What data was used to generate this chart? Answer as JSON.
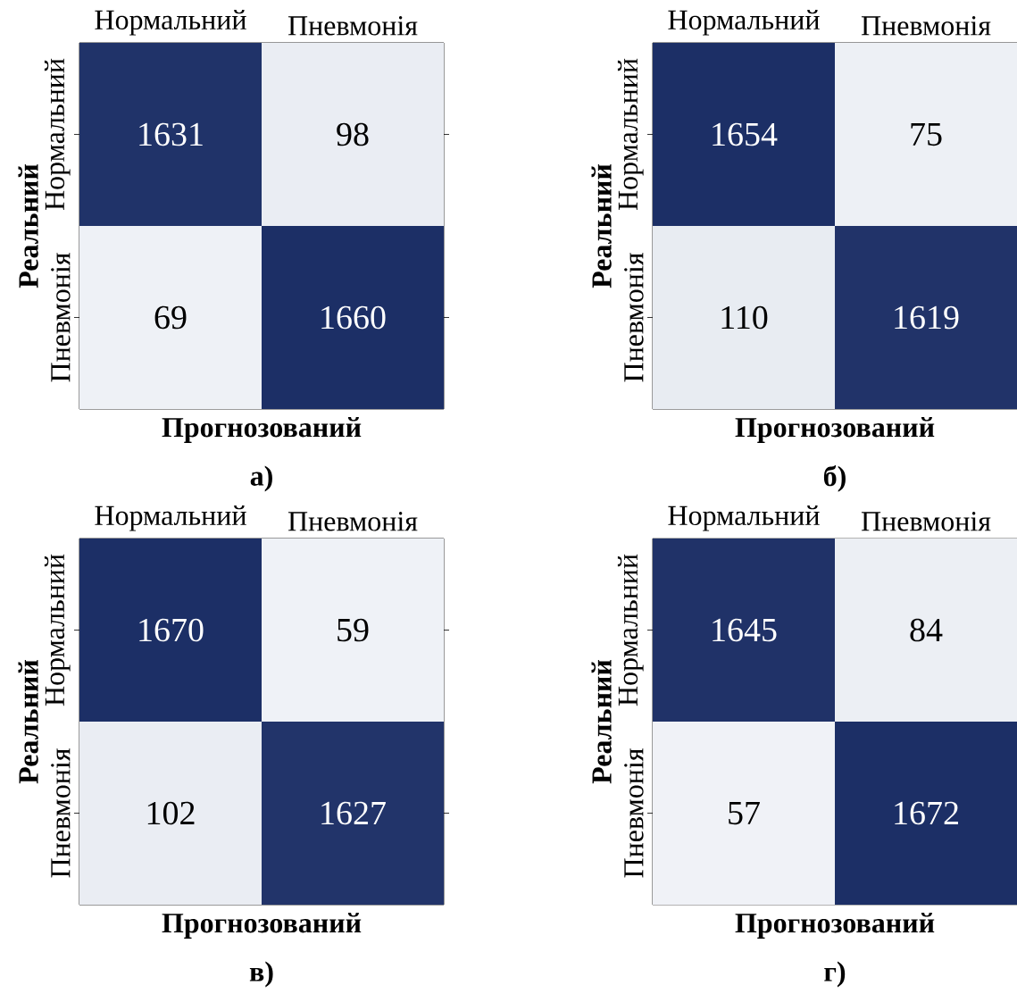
{
  "chart_data": [
    {
      "type": "heatmap",
      "categories": [
        "Нормальний",
        "Пневмонія"
      ],
      "y_categories": [
        "Нормальний",
        "Пневмонія"
      ],
      "cells": [
        [
          1631,
          98
        ],
        [
          69,
          1660
        ]
      ],
      "xlabel": "Прогнозований",
      "ylabel": "Реальний",
      "data_labels": true,
      "annotations": [
        "а)"
      ]
    },
    {
      "type": "heatmap",
      "categories": [
        "Нормальний",
        "Пневмонія"
      ],
      "y_categories": [
        "Нормальний",
        "Пневмонія"
      ],
      "cells": [
        [
          1654,
          75
        ],
        [
          110,
          1619
        ]
      ],
      "xlabel": "Прогнозований",
      "ylabel": "Реальний",
      "data_labels": true,
      "annotations": [
        "б)"
      ]
    },
    {
      "type": "heatmap",
      "categories": [
        "Нормальний",
        "Пневмонія"
      ],
      "y_categories": [
        "Нормальний",
        "Пневмонія"
      ],
      "cells": [
        [
          1670,
          59
        ],
        [
          102,
          1627
        ]
      ],
      "xlabel": "Прогнозований",
      "ylabel": "Реальний",
      "data_labels": true,
      "annotations": [
        "в)"
      ]
    },
    {
      "type": "heatmap",
      "categories": [
        "Нормальний",
        "Пневмонія"
      ],
      "y_categories": [
        "Нормальний",
        "Пневмонія"
      ],
      "cells": [
        [
          1645,
          84
        ],
        [
          57,
          1672
        ]
      ],
      "xlabel": "Прогнозований",
      "ylabel": "Реальний",
      "data_labels": true,
      "annotations": [
        "г)"
      ]
    }
  ]
}
